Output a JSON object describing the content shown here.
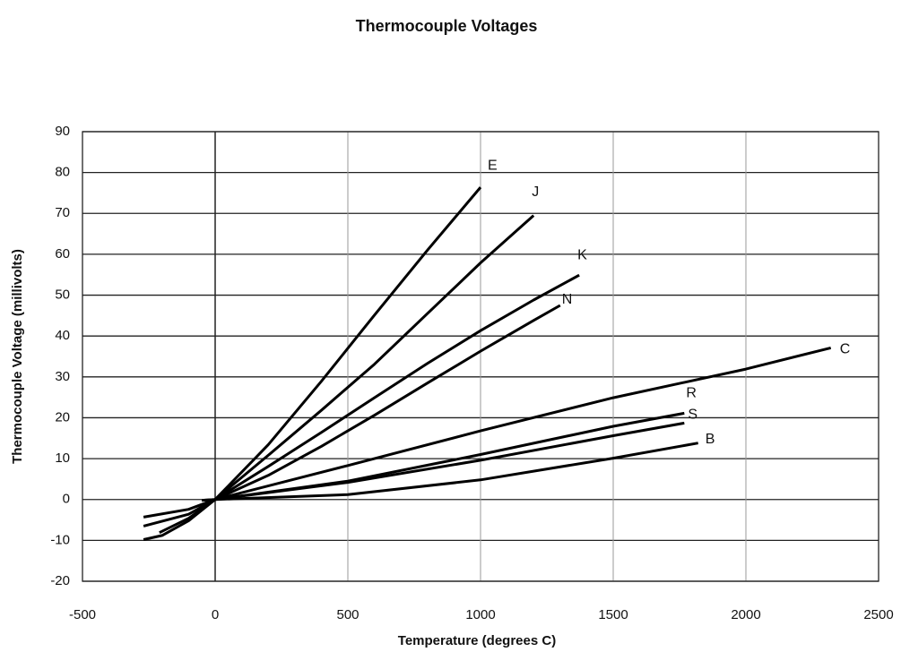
{
  "chart_data": {
    "type": "line",
    "title": "Thermocouple Voltages",
    "x_label": "Temperature (degrees C)",
    "y_label": "Thermocouple Voltage (millivolts)",
    "xlim": [
      -500,
      2500
    ],
    "xticks": [
      -500,
      0,
      500,
      1000,
      1500,
      2000,
      2500
    ],
    "ylim": [
      -20,
      90
    ],
    "yticks": [
      -20,
      -10,
      0,
      10,
      20,
      30,
      40,
      50,
      60,
      70,
      80,
      90
    ],
    "grid": true,
    "series": [
      {
        "name": "E",
        "color": "#000000",
        "x": [
          -270,
          -200,
          -100,
          0,
          200,
          400,
          600,
          800,
          1000
        ],
        "values": [
          -9.8,
          -8.8,
          -5.2,
          0,
          13.4,
          28.9,
          45.1,
          61.0,
          76.4
        ]
      },
      {
        "name": "J",
        "color": "#000000",
        "x": [
          -210,
          -100,
          0,
          200,
          400,
          600,
          800,
          1000,
          1200
        ],
        "values": [
          -8.1,
          -4.6,
          0,
          10.8,
          21.8,
          33.1,
          45.5,
          57.9,
          69.5
        ]
      },
      {
        "name": "K",
        "color": "#000000",
        "x": [
          -270,
          -100,
          0,
          200,
          400,
          600,
          800,
          1000,
          1200,
          1372
        ],
        "values": [
          -6.5,
          -3.6,
          0,
          8.1,
          16.4,
          24.9,
          33.3,
          41.3,
          48.8,
          54.9
        ]
      },
      {
        "name": "N",
        "color": "#000000",
        "x": [
          -270,
          -100,
          0,
          200,
          400,
          600,
          800,
          1000,
          1200,
          1300
        ],
        "values": [
          -4.3,
          -2.4,
          0,
          5.9,
          13.0,
          20.6,
          28.5,
          36.3,
          43.8,
          47.5
        ]
      },
      {
        "name": "C",
        "color": "#000000",
        "x": [
          0,
          500,
          1000,
          1500,
          2000,
          2320
        ],
        "values": [
          0,
          8.3,
          16.8,
          24.9,
          31.9,
          37.1
        ]
      },
      {
        "name": "R",
        "color": "#000000",
        "x": [
          -50,
          0,
          500,
          1000,
          1500,
          1768
        ],
        "values": [
          -0.2,
          0,
          4.5,
          11.0,
          17.9,
          21.1
        ]
      },
      {
        "name": "S",
        "color": "#000000",
        "x": [
          -50,
          0,
          500,
          1000,
          1500,
          1768
        ],
        "values": [
          -0.2,
          0,
          4.2,
          9.6,
          15.6,
          18.7
        ]
      },
      {
        "name": "B",
        "color": "#000000",
        "x": [
          0,
          500,
          1000,
          1500,
          1820
        ],
        "values": [
          0,
          1.2,
          4.8,
          10.1,
          13.8
        ]
      }
    ]
  }
}
